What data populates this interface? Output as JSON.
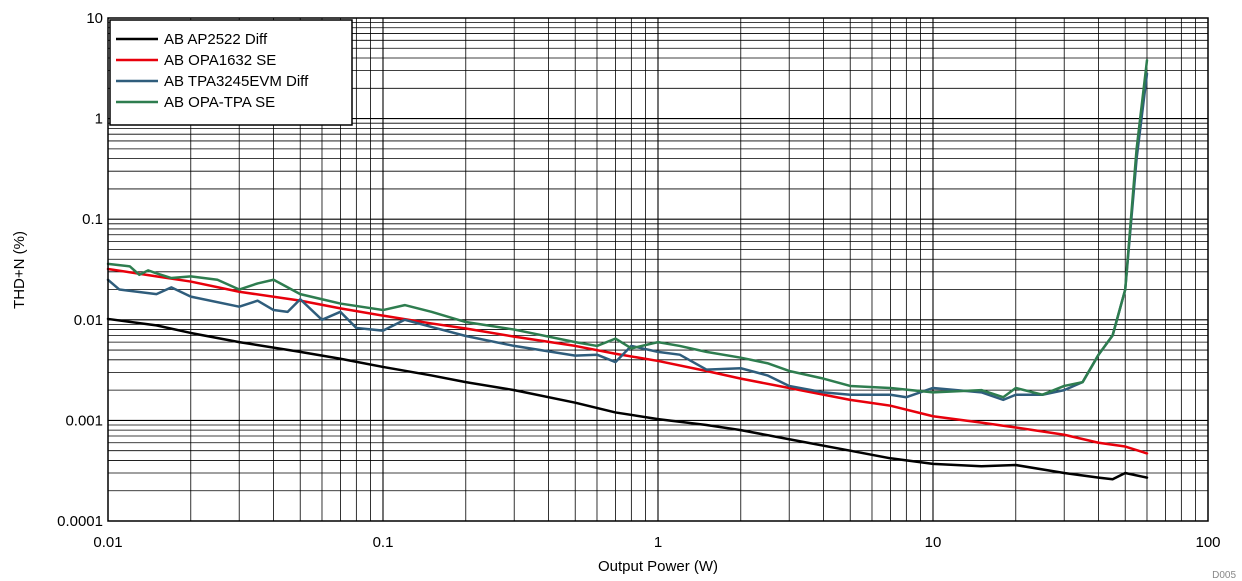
{
  "chart_data": {
    "type": "line",
    "xlabel": "Output Power (W)",
    "ylabel": "THD+N (%)",
    "x_scale": "log",
    "y_scale": "log",
    "xlim": [
      0.01,
      100
    ],
    "ylim": [
      0.0001,
      10
    ],
    "x_ticks": [
      "0.01",
      "0.1",
      "1",
      "10",
      "100"
    ],
    "y_ticks": [
      "0.0001",
      "0.001",
      "0.01",
      "0.1",
      "1",
      "10"
    ],
    "grid": true,
    "legend_position": "top-left",
    "figure_id": "D005",
    "series": [
      {
        "name": "AB AP2522 Diff",
        "color": "#000000",
        "points": [
          [
            0.01,
            0.0102
          ],
          [
            0.015,
            0.0088
          ],
          [
            0.02,
            0.0074
          ],
          [
            0.03,
            0.006
          ],
          [
            0.05,
            0.0048
          ],
          [
            0.07,
            0.0041
          ],
          [
            0.1,
            0.0034
          ],
          [
            0.15,
            0.0028
          ],
          [
            0.2,
            0.0024
          ],
          [
            0.3,
            0.002
          ],
          [
            0.5,
            0.0015
          ],
          [
            0.7,
            0.0012
          ],
          [
            1,
            0.00103
          ],
          [
            1.5,
            0.0009
          ],
          [
            2,
            0.0008
          ],
          [
            3,
            0.00065
          ],
          [
            5,
            0.0005
          ],
          [
            7,
            0.00042
          ],
          [
            10,
            0.00037
          ],
          [
            15,
            0.00035
          ],
          [
            20,
            0.00036
          ],
          [
            30,
            0.0003
          ],
          [
            40,
            0.00027
          ],
          [
            45,
            0.00026
          ],
          [
            50,
            0.0003
          ],
          [
            60,
            0.00027
          ]
        ]
      },
      {
        "name": "AB OPA1632 SE",
        "color": "#e8000b",
        "points": [
          [
            0.01,
            0.032
          ],
          [
            0.015,
            0.027
          ],
          [
            0.02,
            0.024
          ],
          [
            0.03,
            0.019
          ],
          [
            0.05,
            0.0155
          ],
          [
            0.07,
            0.013
          ],
          [
            0.1,
            0.011
          ],
          [
            0.15,
            0.0092
          ],
          [
            0.2,
            0.0082
          ],
          [
            0.3,
            0.0068
          ],
          [
            0.5,
            0.0055
          ],
          [
            0.7,
            0.0046
          ],
          [
            1,
            0.0039
          ],
          [
            1.5,
            0.0031
          ],
          [
            2,
            0.0026
          ],
          [
            3,
            0.0021
          ],
          [
            5,
            0.0016
          ],
          [
            7,
            0.0014
          ],
          [
            10,
            0.0011
          ],
          [
            15,
            0.00095
          ],
          [
            20,
            0.00085
          ],
          [
            30,
            0.00072
          ],
          [
            40,
            0.0006
          ],
          [
            50,
            0.00055
          ],
          [
            60,
            0.00047
          ]
        ]
      },
      {
        "name": "AB TPA3245EVM Diff",
        "color": "#2f5d7c",
        "points": [
          [
            0.01,
            0.025
          ],
          [
            0.011,
            0.02
          ],
          [
            0.015,
            0.018
          ],
          [
            0.017,
            0.021
          ],
          [
            0.02,
            0.017
          ],
          [
            0.03,
            0.0135
          ],
          [
            0.035,
            0.0155
          ],
          [
            0.04,
            0.0125
          ],
          [
            0.045,
            0.012
          ],
          [
            0.05,
            0.016
          ],
          [
            0.06,
            0.01
          ],
          [
            0.07,
            0.012
          ],
          [
            0.08,
            0.0083
          ],
          [
            0.1,
            0.0078
          ],
          [
            0.12,
            0.01
          ],
          [
            0.15,
            0.0085
          ],
          [
            0.2,
            0.0069
          ],
          [
            0.3,
            0.0055
          ],
          [
            0.5,
            0.0044
          ],
          [
            0.6,
            0.0045
          ],
          [
            0.7,
            0.0038
          ],
          [
            0.8,
            0.0055
          ],
          [
            1,
            0.0048
          ],
          [
            1.2,
            0.0045
          ],
          [
            1.5,
            0.0032
          ],
          [
            2,
            0.0033
          ],
          [
            2.5,
            0.0028
          ],
          [
            3,
            0.0022
          ],
          [
            4,
            0.0019
          ],
          [
            5,
            0.0018
          ],
          [
            7,
            0.0018
          ],
          [
            8,
            0.0017
          ],
          [
            10,
            0.0021
          ],
          [
            15,
            0.0019
          ],
          [
            18,
            0.0016
          ],
          [
            20,
            0.0018
          ],
          [
            25,
            0.0018
          ],
          [
            30,
            0.002
          ],
          [
            35,
            0.0024
          ],
          [
            40,
            0.0045
          ],
          [
            45,
            0.007
          ],
          [
            50,
            0.02
          ],
          [
            55,
            0.4
          ],
          [
            60,
            2.8
          ]
        ]
      },
      {
        "name": "AB OPA-TPA SE",
        "color": "#2e7d4f",
        "points": [
          [
            0.01,
            0.036
          ],
          [
            0.012,
            0.034
          ],
          [
            0.013,
            0.028
          ],
          [
            0.014,
            0.031
          ],
          [
            0.015,
            0.029
          ],
          [
            0.017,
            0.026
          ],
          [
            0.02,
            0.027
          ],
          [
            0.025,
            0.025
          ],
          [
            0.03,
            0.02
          ],
          [
            0.035,
            0.023
          ],
          [
            0.04,
            0.025
          ],
          [
            0.05,
            0.018
          ],
          [
            0.06,
            0.016
          ],
          [
            0.07,
            0.0145
          ],
          [
            0.1,
            0.0125
          ],
          [
            0.12,
            0.014
          ],
          [
            0.15,
            0.012
          ],
          [
            0.2,
            0.0095
          ],
          [
            0.3,
            0.008
          ],
          [
            0.5,
            0.006
          ],
          [
            0.6,
            0.0055
          ],
          [
            0.7,
            0.0065
          ],
          [
            0.8,
            0.0052
          ],
          [
            1,
            0.006
          ],
          [
            1.2,
            0.0055
          ],
          [
            1.5,
            0.0048
          ],
          [
            2,
            0.0042
          ],
          [
            2.5,
            0.0037
          ],
          [
            3,
            0.0031
          ],
          [
            4,
            0.0026
          ],
          [
            5,
            0.0022
          ],
          [
            7,
            0.0021
          ],
          [
            10,
            0.0019
          ],
          [
            15,
            0.002
          ],
          [
            18,
            0.0017
          ],
          [
            20,
            0.0021
          ],
          [
            25,
            0.0018
          ],
          [
            30,
            0.0022
          ],
          [
            35,
            0.0024
          ],
          [
            40,
            0.0045
          ],
          [
            45,
            0.007
          ],
          [
            50,
            0.02
          ],
          [
            55,
            0.5
          ],
          [
            60,
            3.8
          ]
        ]
      }
    ]
  }
}
